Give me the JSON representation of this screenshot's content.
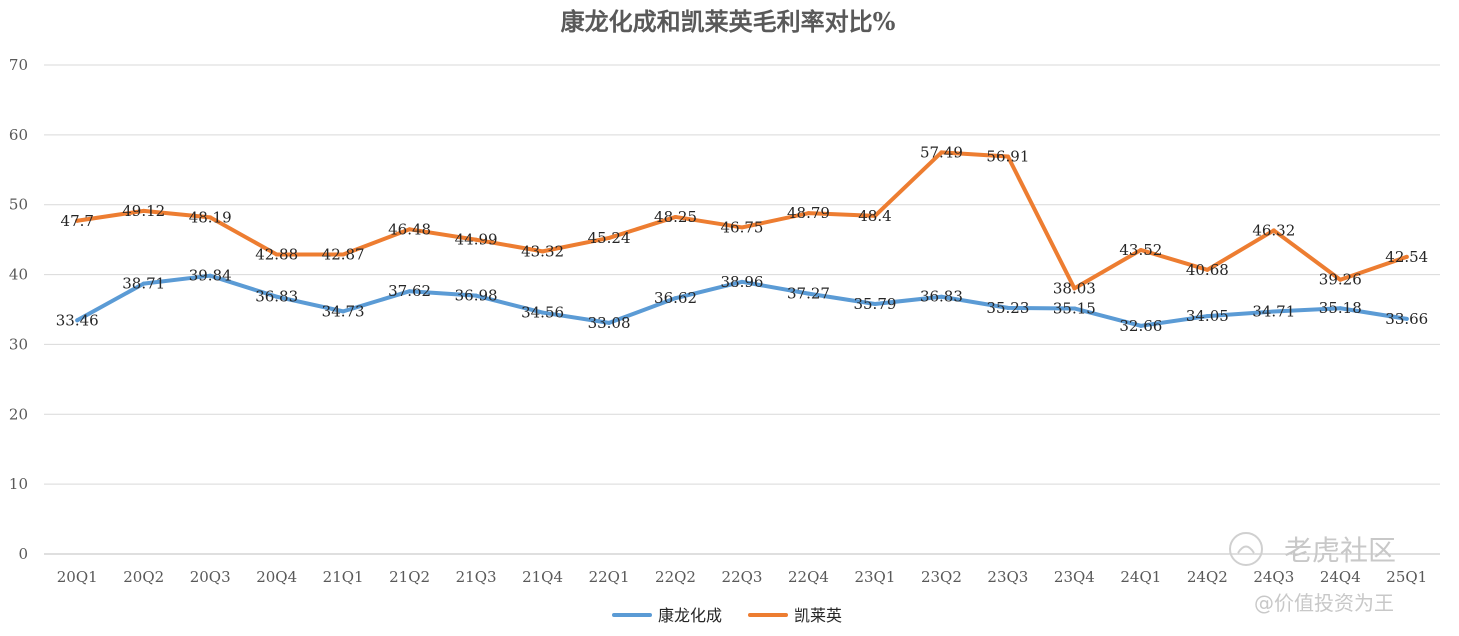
{
  "chart_data": {
    "type": "line",
    "title": "康龙化成和凯莱英毛利率对比%",
    "xlabel": "",
    "ylabel": "",
    "ylim": [
      0,
      70
    ],
    "yticks": [
      "0",
      "10",
      "20",
      "30",
      "40",
      "50",
      "60",
      "70"
    ],
    "grid": true,
    "legend_position": "bottom",
    "categories": [
      "20Q1",
      "20Q2",
      "20Q3",
      "20Q4",
      "21Q1",
      "21Q2",
      "21Q3",
      "21Q4",
      "22Q1",
      "22Q2",
      "22Q3",
      "22Q4",
      "23Q1",
      "23Q2",
      "23Q3",
      "23Q4",
      "24Q1",
      "24Q2",
      "24Q3",
      "24Q4",
      "25Q1"
    ],
    "series": [
      {
        "name": "康龙化成",
        "color": "#5b9bd5",
        "values": [
          33.46,
          38.71,
          39.84,
          36.83,
          34.73,
          37.62,
          36.98,
          34.56,
          33.08,
          36.62,
          38.96,
          37.27,
          35.79,
          36.83,
          35.23,
          35.15,
          32.66,
          34.05,
          34.71,
          35.18,
          33.66
        ],
        "labels": [
          "33.46",
          "38.71",
          "39.84",
          "36.83",
          "34.73",
          "37.62",
          "36.98",
          "34.56",
          "33.08",
          "36.62",
          "38.96",
          "37.27",
          "35.79",
          "36.83",
          "35.23",
          "35.15",
          "32.66",
          "34.05",
          "34.71",
          "35.18",
          "33.66"
        ]
      },
      {
        "name": "凯莱英",
        "color": "#ed7d31",
        "values": [
          47.7,
          49.12,
          48.19,
          42.88,
          42.87,
          46.48,
          44.99,
          43.32,
          45.24,
          48.25,
          46.75,
          48.79,
          48.4,
          57.49,
          56.91,
          38.03,
          43.52,
          40.68,
          46.32,
          39.26,
          42.54
        ],
        "labels": [
          "47.7",
          "49.12",
          "48.19",
          "42.88",
          "42.87",
          "46.48",
          "44.99",
          "43.32",
          "45.24",
          "48.25",
          "46.75",
          "48.79",
          "48.4",
          "57.49",
          "56.91",
          "38.03",
          "43.52",
          "40.68",
          "46.32",
          "39.26",
          "42.54"
        ]
      }
    ]
  },
  "watermark": {
    "brand": "老虎社区",
    "handle": "@价值投资为王"
  }
}
